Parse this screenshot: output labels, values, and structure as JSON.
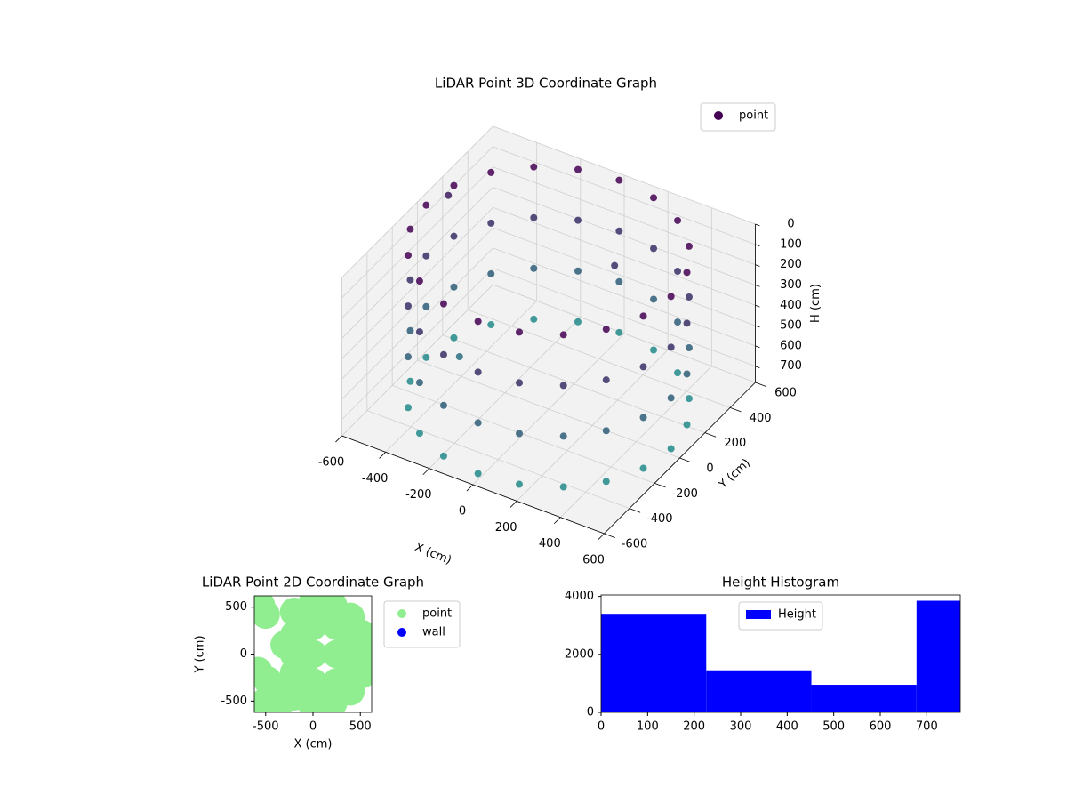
{
  "chart_data": [
    {
      "type": "scatter3d",
      "title": "LiDAR Point 3D Coordinate Graph",
      "x_label": "X (cm)",
      "y_label": "Y (cm)",
      "z_label": "H (cm)",
      "xlim": [
        -600,
        600
      ],
      "ylim": [
        -600,
        600
      ],
      "zlim": [
        780,
        0
      ],
      "xticks": [
        -600,
        -400,
        -200,
        0,
        200,
        400,
        600
      ],
      "yticks": [
        -600,
        -400,
        -200,
        0,
        200,
        400,
        600
      ],
      "zticks": [
        0,
        100,
        200,
        300,
        400,
        500,
        600,
        700
      ],
      "legend": "upper right",
      "series": [
        {
          "name": "point",
          "colormap": [
            "#440154",
            "#21918c"
          ],
          "x": [
            560,
            560,
            560,
            560,
            533,
            533,
            533,
            533,
            453,
            453,
            453,
            453,
            329,
            329,
            329,
            329,
            173,
            173,
            173,
            173,
            0,
            0,
            0,
            0,
            -173,
            -173,
            -173,
            -173,
            -329,
            -329,
            -329,
            -329,
            -453,
            -453,
            -453,
            -453,
            -533,
            -533,
            -533,
            -533,
            -560,
            -560,
            -560,
            -560,
            -533,
            -533,
            -533,
            -533,
            -453,
            -453,
            -453,
            -453,
            -329,
            -329,
            -329,
            -329,
            -173,
            -173,
            -173,
            -173,
            0,
            0,
            0,
            0,
            173,
            173,
            173,
            173,
            329,
            329,
            329,
            329,
            453,
            453,
            453,
            453,
            533,
            533,
            533,
            533,
            -620,
            100,
            -350
          ],
          "y": [
            0,
            0,
            0,
            0,
            173,
            173,
            173,
            173,
            329,
            329,
            329,
            329,
            453,
            453,
            453,
            453,
            533,
            533,
            533,
            533,
            560,
            560,
            560,
            560,
            533,
            533,
            533,
            533,
            453,
            453,
            453,
            453,
            329,
            329,
            329,
            329,
            173,
            173,
            173,
            173,
            0,
            0,
            0,
            0,
            -173,
            -173,
            -173,
            -173,
            -329,
            -329,
            -329,
            -329,
            -453,
            -453,
            -453,
            -453,
            -533,
            -533,
            -533,
            -533,
            -560,
            -560,
            -560,
            -560,
            -533,
            -533,
            -533,
            -533,
            -453,
            -453,
            -453,
            -453,
            -329,
            -329,
            -329,
            -329,
            -173,
            -173,
            -173,
            -173,
            280,
            350,
            -100
          ],
          "z": [
            0,
            250,
            500,
            750,
            0,
            250,
            500,
            750,
            0,
            250,
            500,
            750,
            0,
            250,
            500,
            750,
            0,
            250,
            500,
            750,
            0,
            250,
            500,
            750,
            0,
            250,
            500,
            750,
            0,
            250,
            500,
            750,
            0,
            250,
            500,
            750,
            0,
            250,
            500,
            750,
            0,
            250,
            500,
            750,
            0,
            250,
            500,
            750,
            0,
            250,
            500,
            750,
            0,
            250,
            500,
            750,
            0,
            250,
            500,
            750,
            0,
            250,
            500,
            750,
            0,
            250,
            500,
            750,
            0,
            250,
            500,
            750,
            0,
            250,
            500,
            750,
            0,
            250,
            500,
            750,
            150,
            250,
            600
          ]
        }
      ]
    },
    {
      "type": "scatter",
      "title": "LiDAR Point 2D Coordinate Graph",
      "x_label": "X (cm)",
      "y_label": "Y (cm)",
      "xlim": [
        -620,
        620
      ],
      "ylim": [
        -620,
        620
      ],
      "xticks": [
        -500,
        0,
        500
      ],
      "yticks": [
        -500,
        0,
        500
      ],
      "series": [
        {
          "name": "point",
          "color": "#90ee90",
          "x": [
            0,
            214,
            396,
            517,
            560,
            517,
            396,
            214,
            0,
            -200,
            -200,
            -200,
            -200,
            -200,
            0,
            0,
            0,
            250,
            250,
            250,
            400,
            400,
            100,
            100,
            -100,
            -100,
            -550,
            -500,
            -580,
            -480,
            -400,
            -300,
            -350,
            -520
          ],
          "y": [
            -560,
            -517,
            -396,
            -214,
            0,
            214,
            396,
            517,
            560,
            -450,
            -200,
            0,
            200,
            450,
            -300,
            0,
            300,
            -300,
            0,
            300,
            -150,
            150,
            -450,
            450,
            -100,
            100,
            520,
            420,
            -180,
            -280,
            -380,
            100,
            -520,
            -520
          ]
        },
        {
          "name": "wall",
          "color": "#0000ff",
          "x": [],
          "y": []
        }
      ]
    },
    {
      "type": "histogram",
      "title": "Height Histogram",
      "xlim": [
        0,
        772
      ],
      "ylim": [
        0,
        4050
      ],
      "xticks": [
        0,
        100,
        200,
        300,
        400,
        500,
        600,
        700
      ],
      "yticks": [
        0,
        2000,
        4000
      ],
      "bins": [
        0,
        226,
        452,
        678,
        772
      ],
      "series": [
        {
          "name": "Height",
          "color": "#0000ff",
          "values": [
            3400,
            1450,
            950,
            3850
          ]
        }
      ]
    }
  ]
}
